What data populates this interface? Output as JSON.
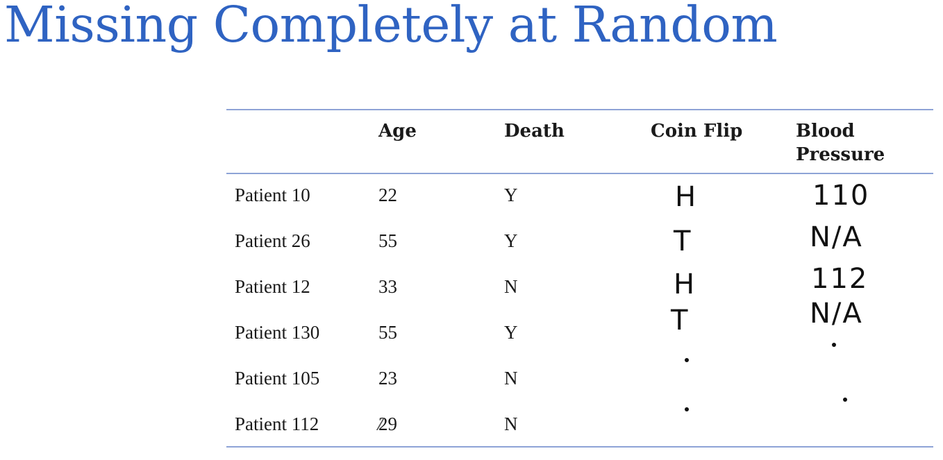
{
  "title": "Missing Completely at Random",
  "table": {
    "headers": {
      "age": "Age",
      "death": "Death",
      "coin_flip": "Coin Flip",
      "bp_line1": "Blood",
      "bp_line2": "Pressure"
    },
    "rows": [
      {
        "patient": "Patient 10",
        "age": "22",
        "death": "Y",
        "coin": "H",
        "bp": "110"
      },
      {
        "patient": "Patient 26",
        "age": "55",
        "death": "Y",
        "coin": "T",
        "bp": "N/A"
      },
      {
        "patient": "Patient 12",
        "age": "33",
        "death": "N",
        "coin": "H",
        "bp": "112"
      },
      {
        "patient": "Patient 130",
        "age": "55",
        "death": "Y",
        "coin": "T",
        "bp": "N/A"
      },
      {
        "patient": "Patient 105",
        "age": "23",
        "death": "N",
        "coin": "",
        "bp": ""
      },
      {
        "patient": "Patient 112",
        "age": "29",
        "death": "N",
        "coin": "",
        "bp": ""
      }
    ]
  }
}
